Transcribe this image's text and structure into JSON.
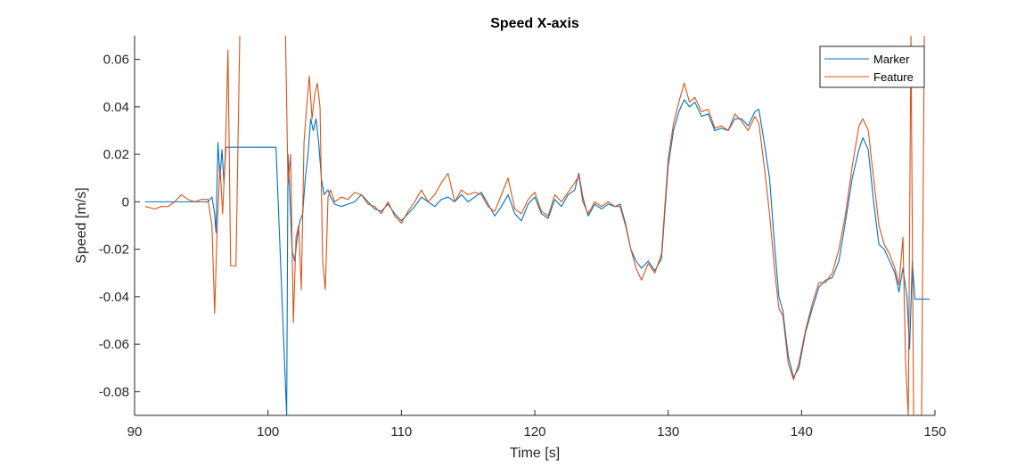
{
  "chart_data": {
    "type": "line",
    "title": "Speed X-axis",
    "xlabel": "Time [s]",
    "ylabel": "Speed [m/s]",
    "xlim": [
      90.8,
      149.8
    ],
    "ylim": [
      -0.09,
      0.07
    ],
    "xticks": [
      90,
      100,
      110,
      120,
      130,
      140,
      150
    ],
    "xtick_labels": [
      "90",
      "100",
      "110",
      "120",
      "130",
      "140",
      "150"
    ],
    "yticks": [
      -0.08,
      -0.06,
      -0.04,
      -0.02,
      0,
      0.02,
      0.04,
      0.06
    ],
    "ytick_labels": [
      "-0.08",
      "-0.06",
      "-0.04",
      "-0.02",
      "0",
      "0.02",
      "0.04",
      "0.06"
    ],
    "grid": false,
    "legend_position": "top-right",
    "series": [
      {
        "name": "Marker",
        "color": "#0072BD",
        "points": [
          [
            90.8,
            0.0
          ],
          [
            91.5,
            0.0
          ],
          [
            92.5,
            0.0
          ],
          [
            93.5,
            0.0
          ],
          [
            94.5,
            0.0
          ],
          [
            95.5,
            0.0
          ],
          [
            95.8,
            0.002
          ],
          [
            96.0,
            -0.005
          ],
          [
            96.1,
            -0.013
          ],
          [
            96.25,
            0.025
          ],
          [
            96.4,
            0.01
          ],
          [
            96.55,
            0.022
          ],
          [
            96.7,
            0.008
          ],
          [
            96.85,
            0.023
          ],
          [
            97.5,
            0.023
          ],
          [
            98.5,
            0.023
          ],
          [
            99.5,
            0.023
          ],
          [
            100.6,
            0.023
          ],
          [
            101.4,
            -0.09
          ],
          [
            101.5,
            0.02
          ],
          [
            101.6,
            0.008
          ],
          [
            101.8,
            -0.02
          ],
          [
            102.0,
            -0.025
          ],
          [
            102.2,
            -0.015
          ],
          [
            102.4,
            -0.008
          ],
          [
            102.6,
            -0.005
          ],
          [
            102.8,
            0.01
          ],
          [
            103.0,
            0.02
          ],
          [
            103.2,
            0.035
          ],
          [
            103.4,
            0.03
          ],
          [
            103.6,
            0.035
          ],
          [
            103.8,
            0.025
          ],
          [
            104.0,
            0.01
          ],
          [
            104.2,
            0.003
          ],
          [
            104.5,
            0.005
          ],
          [
            104.7,
            0.002
          ],
          [
            105.0,
            -0.001
          ],
          [
            105.5,
            -0.002
          ],
          [
            106.0,
            -0.001
          ],
          [
            106.5,
            0.0
          ],
          [
            107.0,
            0.003
          ],
          [
            107.5,
            0.0
          ],
          [
            108.0,
            -0.003
          ],
          [
            108.5,
            -0.004
          ],
          [
            109.0,
            -0.001
          ],
          [
            109.5,
            -0.005
          ],
          [
            110.0,
            -0.008
          ],
          [
            110.5,
            -0.005
          ],
          [
            111.0,
            -0.002
          ],
          [
            111.5,
            0.002
          ],
          [
            112.0,
            0.0
          ],
          [
            112.5,
            -0.002
          ],
          [
            113.0,
            0.001
          ],
          [
            113.5,
            0.002
          ],
          [
            114.0,
            0.0
          ],
          [
            114.5,
            0.003
          ],
          [
            115.0,
            0.0
          ],
          [
            115.5,
            0.002
          ],
          [
            116.0,
            0.004
          ],
          [
            116.5,
            -0.001
          ],
          [
            117.0,
            -0.006
          ],
          [
            117.5,
            -0.002
          ],
          [
            118.0,
            0.003
          ],
          [
            118.5,
            -0.005
          ],
          [
            119.0,
            -0.008
          ],
          [
            119.5,
            -0.001
          ],
          [
            120.0,
            0.002
          ],
          [
            120.5,
            -0.005
          ],
          [
            121.0,
            -0.007
          ],
          [
            121.5,
            0.001
          ],
          [
            122.0,
            -0.002
          ],
          [
            122.5,
            0.003
          ],
          [
            123.0,
            0.005
          ],
          [
            123.3,
            0.012
          ],
          [
            123.6,
            0.002
          ],
          [
            124.0,
            -0.006
          ],
          [
            124.5,
            -0.001
          ],
          [
            125.0,
            -0.003
          ],
          [
            125.5,
            -0.001
          ],
          [
            126.0,
            -0.002
          ],
          [
            126.4,
            -0.001
          ],
          [
            126.8,
            -0.009
          ],
          [
            127.2,
            -0.02
          ],
          [
            127.6,
            -0.025
          ],
          [
            128.0,
            -0.028
          ],
          [
            128.5,
            -0.025
          ],
          [
            129.0,
            -0.029
          ],
          [
            129.5,
            -0.024
          ],
          [
            130.0,
            0.015
          ],
          [
            130.4,
            0.03
          ],
          [
            130.8,
            0.038
          ],
          [
            131.2,
            0.043
          ],
          [
            131.6,
            0.04
          ],
          [
            132.0,
            0.042
          ],
          [
            132.5,
            0.036
          ],
          [
            133.0,
            0.037
          ],
          [
            133.5,
            0.03
          ],
          [
            134.0,
            0.031
          ],
          [
            134.5,
            0.03
          ],
          [
            135.0,
            0.035
          ],
          [
            135.5,
            0.035
          ],
          [
            136.0,
            0.032
          ],
          [
            136.5,
            0.038
          ],
          [
            136.8,
            0.039
          ],
          [
            137.2,
            0.025
          ],
          [
            137.6,
            0.01
          ],
          [
            138.0,
            -0.02
          ],
          [
            138.3,
            -0.04
          ],
          [
            138.6,
            -0.046
          ],
          [
            139.0,
            -0.065
          ],
          [
            139.4,
            -0.074
          ],
          [
            139.8,
            -0.07
          ],
          [
            140.3,
            -0.055
          ],
          [
            140.8,
            -0.045
          ],
          [
            141.3,
            -0.036
          ],
          [
            141.8,
            -0.033
          ],
          [
            142.3,
            -0.032
          ],
          [
            142.8,
            -0.025
          ],
          [
            143.3,
            -0.008
          ],
          [
            143.8,
            0.01
          ],
          [
            144.3,
            0.022
          ],
          [
            144.6,
            0.027
          ],
          [
            145.0,
            0.022
          ],
          [
            145.4,
            0.0
          ],
          [
            145.8,
            -0.018
          ],
          [
            146.2,
            -0.02
          ],
          [
            146.6,
            -0.025
          ],
          [
            147.0,
            -0.03
          ],
          [
            147.3,
            -0.038
          ],
          [
            147.6,
            -0.028
          ],
          [
            147.9,
            -0.04
          ],
          [
            148.1,
            -0.062
          ],
          [
            148.3,
            -0.025
          ],
          [
            148.5,
            -0.041
          ],
          [
            149.0,
            -0.041
          ],
          [
            149.6,
            -0.041
          ]
        ]
      },
      {
        "name": "Feature",
        "color": "#D95319",
        "points": [
          [
            90.8,
            -0.002
          ],
          [
            91.5,
            -0.003
          ],
          [
            92.0,
            -0.002
          ],
          [
            92.5,
            -0.002
          ],
          [
            93.0,
            0.0
          ],
          [
            93.5,
            0.003
          ],
          [
            94.0,
            0.001
          ],
          [
            94.5,
            0.0
          ],
          [
            95.0,
            0.001
          ],
          [
            95.5,
            0.001
          ],
          [
            95.8,
            -0.01
          ],
          [
            96.0,
            -0.047
          ],
          [
            96.2,
            -0.01
          ],
          [
            96.4,
            0.015
          ],
          [
            96.6,
            -0.005
          ],
          [
            96.8,
            0.02
          ],
          [
            97.0,
            0.064
          ],
          [
            97.2,
            -0.027
          ],
          [
            97.6,
            -0.027
          ],
          [
            97.9,
            0.075
          ],
          [
            101.3,
            0.075
          ],
          [
            101.5,
            0.007
          ],
          [
            101.7,
            0.02
          ],
          [
            101.9,
            -0.051
          ],
          [
            102.1,
            -0.015
          ],
          [
            102.3,
            -0.01
          ],
          [
            102.5,
            -0.037
          ],
          [
            102.7,
            0.025
          ],
          [
            102.9,
            0.04
          ],
          [
            103.1,
            0.053
          ],
          [
            103.3,
            0.035
          ],
          [
            103.5,
            0.045
          ],
          [
            103.7,
            0.05
          ],
          [
            103.9,
            0.04
          ],
          [
            104.1,
            -0.025
          ],
          [
            104.3,
            -0.037
          ],
          [
            104.5,
            0.002
          ],
          [
            104.7,
            0.005
          ],
          [
            105.0,
            0.0
          ],
          [
            105.5,
            0.002
          ],
          [
            106.0,
            0.001
          ],
          [
            106.5,
            0.004
          ],
          [
            107.0,
            0.003
          ],
          [
            107.5,
            -0.001
          ],
          [
            108.0,
            -0.002
          ],
          [
            108.5,
            -0.005
          ],
          [
            109.0,
            0.0
          ],
          [
            109.5,
            -0.006
          ],
          [
            110.0,
            -0.009
          ],
          [
            110.5,
            -0.004
          ],
          [
            111.0,
            0.0
          ],
          [
            111.5,
            0.005
          ],
          [
            112.0,
            0.0
          ],
          [
            112.5,
            0.003
          ],
          [
            113.0,
            0.008
          ],
          [
            113.5,
            0.012
          ],
          [
            114.0,
            0.0
          ],
          [
            114.5,
            0.005
          ],
          [
            115.0,
            0.003
          ],
          [
            115.5,
            0.004
          ],
          [
            116.0,
            0.003
          ],
          [
            116.5,
            -0.002
          ],
          [
            117.0,
            -0.004
          ],
          [
            117.5,
            0.003
          ],
          [
            118.0,
            0.01
          ],
          [
            118.5,
            -0.003
          ],
          [
            119.0,
            -0.005
          ],
          [
            119.5,
            0.001
          ],
          [
            120.0,
            0.004
          ],
          [
            120.5,
            -0.004
          ],
          [
            121.0,
            -0.006
          ],
          [
            121.5,
            0.003
          ],
          [
            122.0,
            0.0
          ],
          [
            122.5,
            0.004
          ],
          [
            123.0,
            0.008
          ],
          [
            123.3,
            0.011
          ],
          [
            123.6,
            0.0
          ],
          [
            124.0,
            -0.005
          ],
          [
            124.5,
            0.0
          ],
          [
            125.0,
            -0.002
          ],
          [
            125.5,
            0.0
          ],
          [
            126.0,
            -0.002
          ],
          [
            126.4,
            -0.002
          ],
          [
            126.8,
            -0.01
          ],
          [
            127.2,
            -0.02
          ],
          [
            127.6,
            -0.028
          ],
          [
            128.0,
            -0.033
          ],
          [
            128.5,
            -0.026
          ],
          [
            129.0,
            -0.03
          ],
          [
            129.5,
            -0.022
          ],
          [
            130.0,
            0.018
          ],
          [
            130.4,
            0.033
          ],
          [
            130.8,
            0.042
          ],
          [
            131.2,
            0.05
          ],
          [
            131.6,
            0.042
          ],
          [
            132.0,
            0.044
          ],
          [
            132.5,
            0.038
          ],
          [
            133.0,
            0.039
          ],
          [
            133.5,
            0.031
          ],
          [
            134.0,
            0.032
          ],
          [
            134.5,
            0.03
          ],
          [
            135.0,
            0.037
          ],
          [
            135.5,
            0.034
          ],
          [
            136.0,
            0.03
          ],
          [
            136.5,
            0.036
          ],
          [
            136.8,
            0.033
          ],
          [
            137.2,
            0.015
          ],
          [
            137.6,
            -0.005
          ],
          [
            138.0,
            -0.03
          ],
          [
            138.3,
            -0.045
          ],
          [
            138.6,
            -0.048
          ],
          [
            139.0,
            -0.068
          ],
          [
            139.4,
            -0.075
          ],
          [
            139.8,
            -0.068
          ],
          [
            140.3,
            -0.054
          ],
          [
            140.8,
            -0.043
          ],
          [
            141.3,
            -0.034
          ],
          [
            141.8,
            -0.034
          ],
          [
            142.3,
            -0.03
          ],
          [
            142.8,
            -0.02
          ],
          [
            143.3,
            -0.005
          ],
          [
            143.8,
            0.015
          ],
          [
            144.3,
            0.032
          ],
          [
            144.6,
            0.035
          ],
          [
            145.0,
            0.03
          ],
          [
            145.4,
            0.01
          ],
          [
            145.8,
            -0.01
          ],
          [
            146.2,
            -0.018
          ],
          [
            146.6,
            -0.022
          ],
          [
            147.0,
            -0.028
          ],
          [
            147.3,
            -0.035
          ],
          [
            147.6,
            -0.015
          ],
          [
            147.8,
            -0.068
          ],
          [
            148.0,
            -0.09
          ],
          [
            148.2,
            0.07
          ],
          [
            148.4,
            -0.09
          ],
          [
            149.0,
            -0.09
          ],
          [
            149.2,
            0.07
          ]
        ]
      }
    ]
  }
}
